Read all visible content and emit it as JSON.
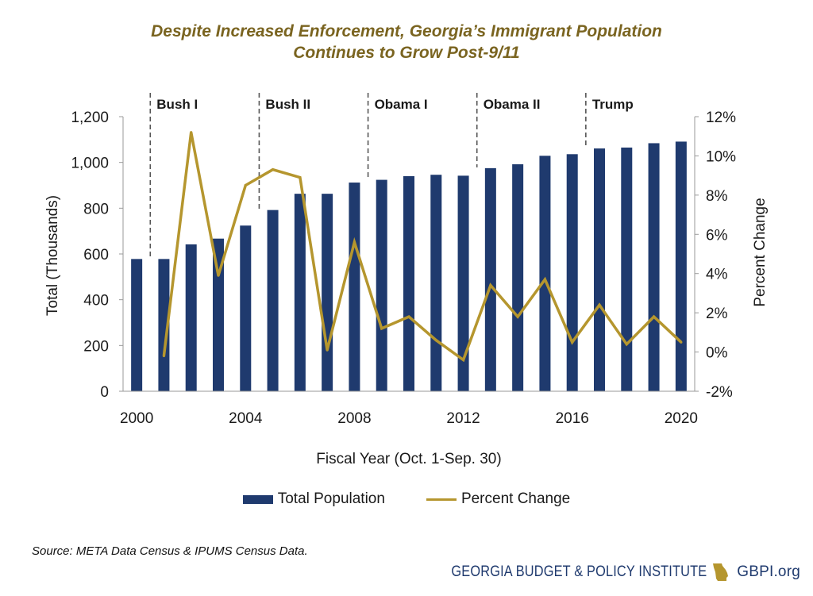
{
  "title_line1": "Despite Increased Enforcement, Georgia’s Immigrant Population",
  "title_line2": "Continues to Grow Post-9/11",
  "source": "Source: META Data Census & IPUMS Census Data.",
  "footer": {
    "org": "GEORGIA BUDGET & POLICY INSTITUTE",
    "site": "GBPI.org",
    "logo_icon": "georgia-state-icon"
  },
  "colors": {
    "bar": "#1f3a6e",
    "line": "#b5962e",
    "title": "#7a6420",
    "axis": "#9a9a9a",
    "divider": "#555555"
  },
  "chart_data": {
    "type": "bar+line",
    "title": "Despite Increased Enforcement, Georgia’s Immigrant Population Continues to Grow Post-9/11",
    "xlabel": "Fiscal Year (Oct. 1-Sep. 30)",
    "ylabel": "Total (Thousands)",
    "y2label": "Percent Change",
    "x": [
      2000,
      2001,
      2002,
      2003,
      2004,
      2005,
      2006,
      2007,
      2008,
      2009,
      2010,
      2011,
      2012,
      2013,
      2014,
      2015,
      2016,
      2017,
      2018,
      2019,
      2020
    ],
    "x_ticks": [
      "2000",
      "2004",
      "2008",
      "2012",
      "2016",
      "2020"
    ],
    "x_tick_years": [
      2000,
      2004,
      2008,
      2012,
      2016,
      2020
    ],
    "ylim": [
      0,
      1200
    ],
    "y_ticks": [
      "0",
      "200",
      "400",
      "600",
      "800",
      "1,000",
      "1,200"
    ],
    "y_tick_values": [
      0,
      200,
      400,
      600,
      800,
      1000,
      1200
    ],
    "y2lim": [
      -2,
      12
    ],
    "y2_ticks": [
      "-2%",
      "0%",
      "2%",
      "4%",
      "6%",
      "8%",
      "10%",
      "12%"
    ],
    "y2_tick_values": [
      -2,
      0,
      2,
      4,
      6,
      8,
      10,
      12
    ],
    "series": [
      {
        "name": "Total Population",
        "kind": "bar",
        "axis": "left",
        "values": [
          578,
          578,
          642,
          667,
          724,
          792,
          863,
          863,
          912,
          924,
          940,
          946,
          942,
          975,
          992,
          1029,
          1036,
          1061,
          1065,
          1084,
          1091
        ]
      },
      {
        "name": "Percent Change",
        "kind": "line",
        "axis": "right",
        "x": [
          2001,
          2002,
          2003,
          2004,
          2005,
          2006,
          2007,
          2008,
          2009,
          2010,
          2011,
          2012,
          2013,
          2014,
          2015,
          2016,
          2017,
          2018,
          2019,
          2020
        ],
        "values": [
          -0.2,
          11.2,
          3.9,
          8.5,
          9.3,
          8.9,
          0.1,
          5.6,
          1.2,
          1.8,
          0.6,
          -0.4,
          3.4,
          1.8,
          3.7,
          0.5,
          2.4,
          0.4,
          1.8,
          0.5
        ]
      }
    ],
    "periods": [
      {
        "label": "Bush I",
        "start": 2001
      },
      {
        "label": "Bush II",
        "start": 2005
      },
      {
        "label": "Obama I",
        "start": 2009
      },
      {
        "label": "Obama II",
        "start": 2013
      },
      {
        "label": "Trump",
        "start": 2017
      }
    ],
    "legend": [
      "Total Population",
      "Percent Change"
    ],
    "legend_position": "bottom-center",
    "grid": false
  }
}
